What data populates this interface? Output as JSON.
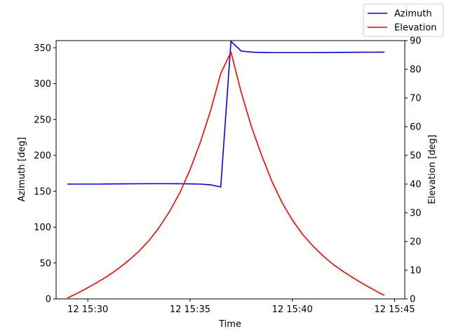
{
  "chart_data": {
    "type": "line",
    "xlabel": "Time",
    "ylabel_left": "Azimuth [deg]",
    "ylabel_right": "Elevation [deg]",
    "x_ticks": [
      "12 15:30",
      "12 15:35",
      "12 15:40",
      "12 15:45"
    ],
    "x_tick_minutes": [
      30,
      35,
      40,
      45
    ],
    "xlim_minutes": [
      28.45,
      45.5
    ],
    "ylim_left": [
      0,
      360
    ],
    "ylim_right": [
      0,
      90
    ],
    "yticks_left": [
      0,
      50,
      100,
      150,
      200,
      250,
      300,
      350
    ],
    "yticks_right": [
      0,
      10,
      20,
      30,
      40,
      50,
      60,
      70,
      80,
      90
    ],
    "grid": false,
    "legend_position": "top-right",
    "x_minutes": [
      29.0,
      29.5,
      30.0,
      30.5,
      31.0,
      31.5,
      32.0,
      32.5,
      33.0,
      33.5,
      34.0,
      34.5,
      35.0,
      35.5,
      36.0,
      36.5,
      37.0,
      37.5,
      38.0,
      38.5,
      39.0,
      39.5,
      40.0,
      40.5,
      41.0,
      41.5,
      42.0,
      42.5,
      43.0,
      43.5,
      44.0,
      44.5
    ],
    "series": [
      {
        "name": "Azimuth",
        "axis": "left",
        "color": "#0000ff",
        "values": [
          160,
          160,
          160,
          160,
          160.2,
          160.3,
          160.4,
          160.5,
          160.6,
          160.6,
          160.6,
          160.5,
          160.3,
          160,
          159,
          156,
          359,
          345.5,
          344,
          343.5,
          343.3,
          343.3,
          343.3,
          343.3,
          343.3,
          343.4,
          343.5,
          343.6,
          343.7,
          343.8,
          343.9,
          344
        ]
      },
      {
        "name": "Elevation",
        "axis": "right",
        "color": "#ff0000",
        "values": [
          0.3,
          2,
          3.9,
          5.9,
          8.1,
          10.6,
          13.4,
          16.6,
          20.4,
          25,
          30.5,
          37,
          45,
          54.5,
          65.5,
          78.5,
          86,
          72,
          60,
          50,
          41,
          33.5,
          27.5,
          22.5,
          18.5,
          15,
          12,
          9.5,
          7.2,
          5.1,
          3.1,
          1.2
        ]
      }
    ]
  }
}
